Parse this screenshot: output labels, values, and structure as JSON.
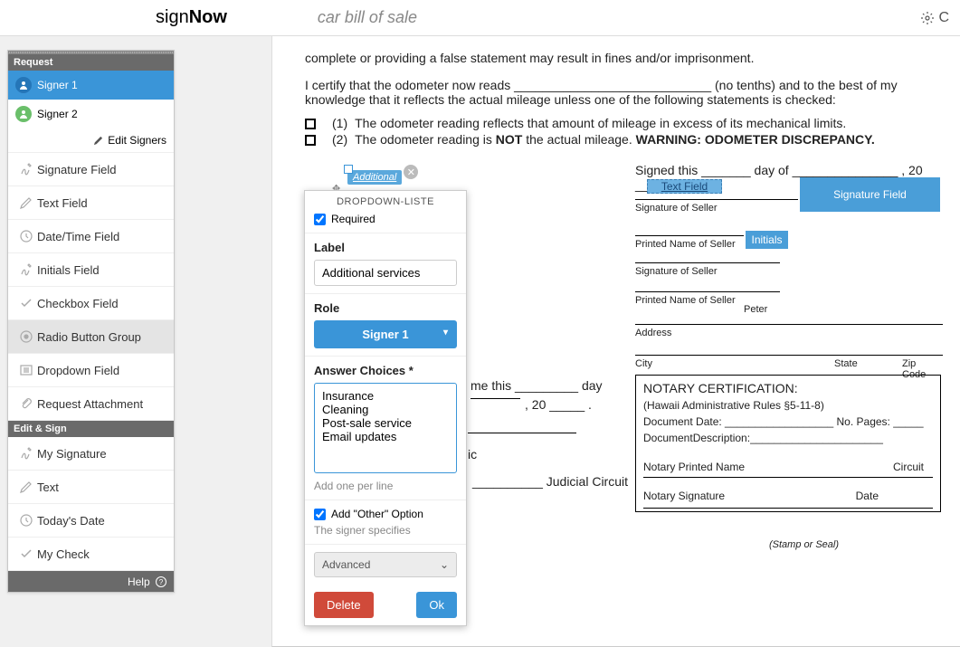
{
  "header": {
    "logo_sign": "sign",
    "logo_now": "Now",
    "doc_title": "car bill of sale",
    "settings_char": "C"
  },
  "sidebar": {
    "request_header": "Request",
    "signers": [
      {
        "label": "Signer 1",
        "active": true
      },
      {
        "label": "Signer 2",
        "active": false
      }
    ],
    "edit_signers": "Edit Signers",
    "fields": [
      {
        "label": "Signature Field",
        "icon": "signature"
      },
      {
        "label": "Text Field",
        "icon": "pencil"
      },
      {
        "label": "Date/Time Field",
        "icon": "clock"
      },
      {
        "label": "Initials Field",
        "icon": "signature"
      },
      {
        "label": "Checkbox Field",
        "icon": "check"
      },
      {
        "label": "Radio Button Group",
        "icon": "radio",
        "selected": true
      },
      {
        "label": "Dropdown Field",
        "icon": "dropdown"
      },
      {
        "label": "Request Attachment",
        "icon": "attach"
      }
    ],
    "edit_sign_header": "Edit & Sign",
    "edit_fields": [
      {
        "label": "My Signature",
        "icon": "signature"
      },
      {
        "label": "Text",
        "icon": "pencil"
      },
      {
        "label": "Today's Date",
        "icon": "clock"
      },
      {
        "label": "My Check",
        "icon": "check"
      }
    ],
    "help": "Help"
  },
  "doc": {
    "intro": "complete or providing a false statement may result in fines and/or imprisonment.",
    "certify_1": "I certify that the odometer now reads ____________________________ (no tenths) and to the best of my knowledge that it reflects the actual mileage unless one of the following statements is checked:",
    "chk1_num": "(1)",
    "chk1_text": "The odometer reading reflects that amount of mileage in excess of its mechanical limits.",
    "chk2_num": "(2)",
    "chk2_text_a": "The odometer reading is ",
    "chk2_not": "NOT",
    "chk2_text_b": " the actual mileage. ",
    "chk2_warn": "WARNING: ODOMETER DISCREPANCY.",
    "signed_this": "Signed this _______ day of _______________ , 20 ____",
    "text_field_label": "Text Field",
    "sig_field_label": "Signature Field",
    "initials_label": "Initials",
    "sig_of_seller": "Signature of Seller",
    "printed_name_seller": "Printed Name of Seller",
    "peter": "Peter",
    "address": "Address",
    "city": "City",
    "state": "State",
    "zip": "Zip Code",
    "me_this": "me this _________ day",
    "comma20": ", 20 _____ .",
    "judicial": "__________ Judicial Circuit",
    "ic": "ic",
    "notary_title": "NOTARY CERTIFICATION:",
    "notary_rules": "(Hawaii Administrative Rules §5-11-8)",
    "notary_docdate": "Document Date: __________________ No. Pages: _____",
    "notary_desc_label": "DocumentDescription:",
    "notary_desc_line": "______________________",
    "notary_printed": "Notary Printed Name",
    "notary_circuit": "Circuit",
    "notary_sig": "Notary Signature",
    "notary_date": "Date",
    "stamp": "(Stamp or Seal)"
  },
  "tag": {
    "label": "Additional"
  },
  "popover": {
    "title": "DROPDOWN-LISTE",
    "required": "Required",
    "label_label": "Label",
    "label_value": "Additional services",
    "role_label": "Role",
    "role_value": "Signer 1",
    "answers_label": "Answer Choices *",
    "answers_value": "Insurance\nCleaning\nPost-sale service\nEmail updates",
    "answers_hint": "Add one per line",
    "other_label": "Add \"Other\" Option",
    "other_hint": "The signer specifies",
    "advanced": "Advanced",
    "delete": "Delete",
    "ok": "Ok"
  }
}
